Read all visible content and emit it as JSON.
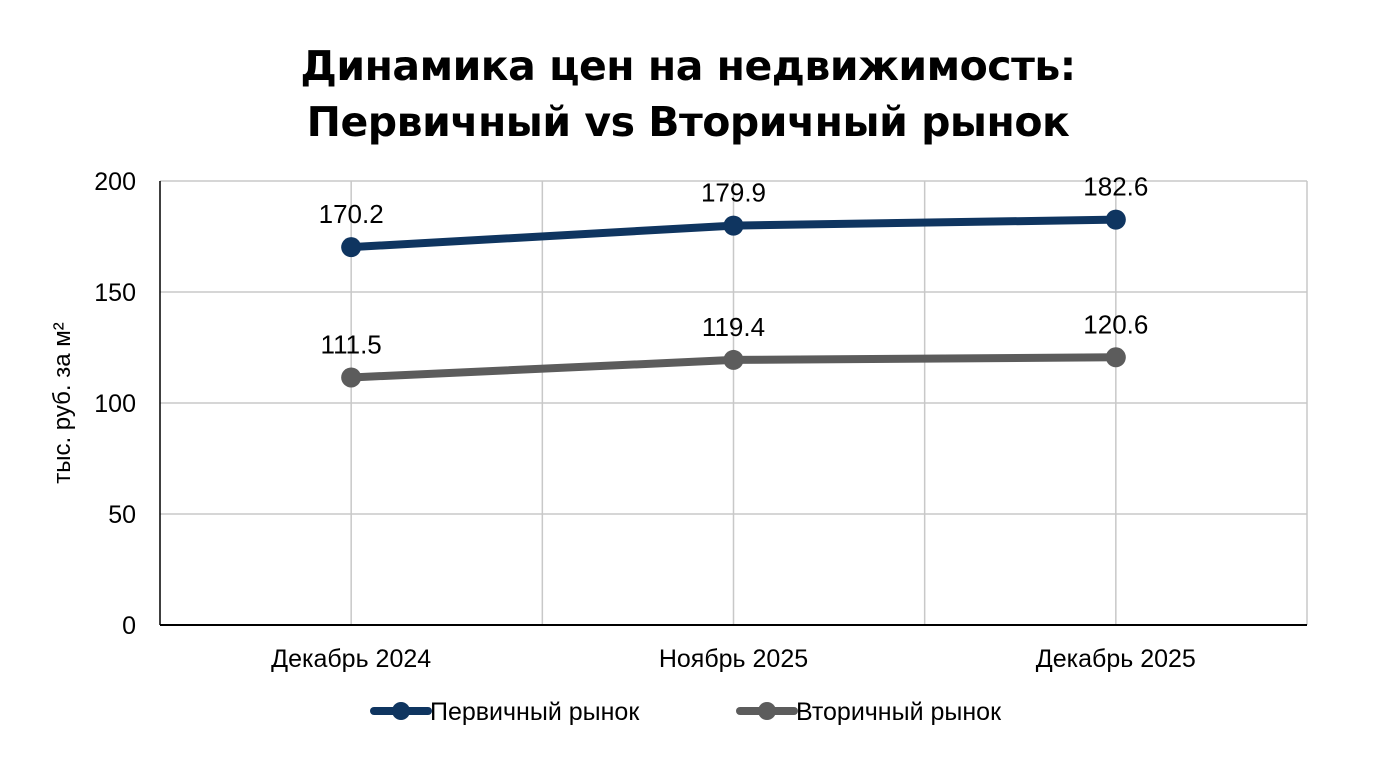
{
  "title_line1": "Динамика цен на недвижимость:",
  "title_line2": "Первичный vs Вторичный рынок",
  "chart_data": {
    "type": "line",
    "title": "Динамика цен на недвижимость: Первичный vs Вторичный рынок",
    "xlabel": "",
    "ylabel": "тыс. руб. за м²",
    "ylim": [
      0,
      200
    ],
    "yticks": [
      0,
      50,
      100,
      150,
      200
    ],
    "grid": true,
    "legend_position": "bottom",
    "categories": [
      "Декабрь 2024",
      "Ноябрь 2025",
      "Декабрь 2025"
    ],
    "series": [
      {
        "name": "Первичный рынок",
        "color": "#0f3560",
        "values": [
          170.2,
          179.9,
          182.6
        ],
        "labels": [
          "170.2",
          "179.9",
          "182.6"
        ]
      },
      {
        "name": "Вторичный рынок",
        "color": "#5c5c5c",
        "values": [
          111.5,
          119.4,
          120.6
        ],
        "labels": [
          "111.5",
          "119.4",
          "120.6"
        ]
      }
    ]
  }
}
